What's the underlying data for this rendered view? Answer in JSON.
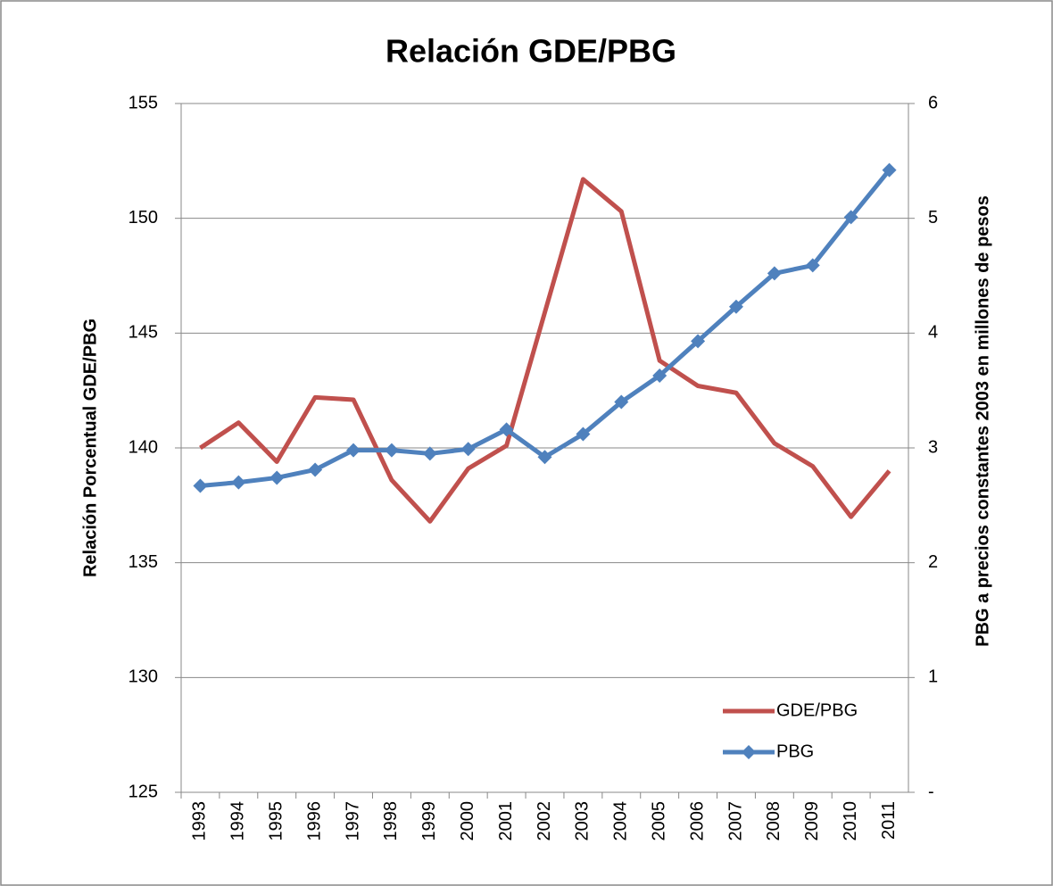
{
  "chart_data": {
    "type": "line",
    "title": "Relación GDE/PBG",
    "y_label": "Relación Porcentual GDE/PBG",
    "y2_label": "PBG a precios constantes 2003 en millones de pesos",
    "categories": [
      "1993",
      "1994",
      "1995",
      "1996",
      "1997",
      "1998",
      "1999",
      "2000",
      "2001",
      "2002",
      "2003",
      "2004",
      "2005",
      "2006",
      "2007",
      "2008",
      "2009",
      "2010",
      "2011"
    ],
    "series": [
      {
        "name": "GDE/PBG",
        "color": "#c0504d",
        "values": [
          140.0,
          141.1,
          139.4,
          142.2,
          142.1,
          138.6,
          136.8,
          139.1,
          140.1,
          145.9,
          151.7,
          150.3,
          143.8,
          142.7,
          142.4,
          140.2,
          139.2,
          137.0,
          139.0
        ]
      },
      {
        "name": "PBG",
        "color": "#4f81bd",
        "axis": "y2",
        "marker": "diamond",
        "values": [
          2.67,
          2.7,
          2.74,
          2.81,
          2.98,
          2.98,
          2.95,
          2.99,
          3.16,
          2.92,
          3.12,
          3.4,
          3.63,
          3.93,
          4.23,
          4.52,
          4.59,
          5.01,
          5.42
        ]
      }
    ],
    "ylim": [
      125,
      155
    ],
    "yticks": [
      125,
      130,
      135,
      140,
      145,
      150,
      155
    ],
    "y2lim": [
      0,
      6
    ],
    "y2ticks": [
      {
        "value": 0,
        "label": "-"
      },
      1,
      2,
      3,
      4,
      5,
      6
    ],
    "grid": true,
    "legend": "lower right"
  }
}
